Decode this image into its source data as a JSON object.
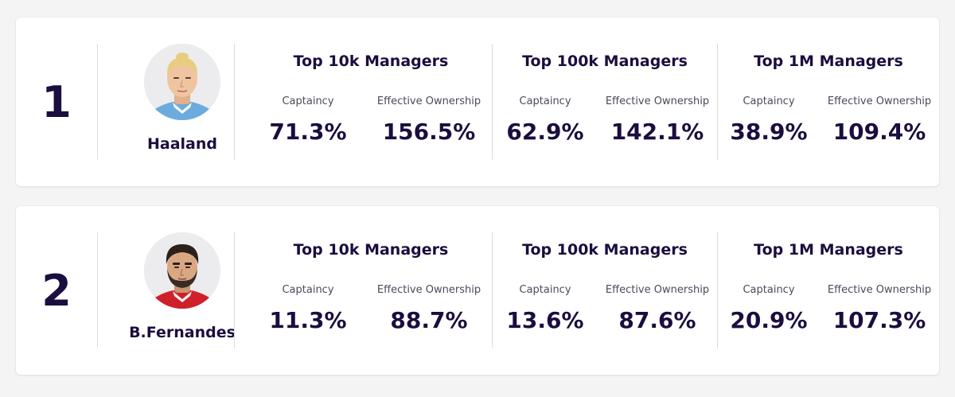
{
  "tier_labels": {
    "t10k": "Top 10k Managers",
    "t100k": "Top 100k Managers",
    "t1m": "Top 1M Managers"
  },
  "stat_labels": {
    "captaincy": "Captaincy",
    "eo": "Effective Ownership"
  },
  "players": [
    {
      "rank": "1",
      "name": "Haaland",
      "avatar": "player-avatar-blonde-light-blue-kit",
      "t10k": {
        "captaincy": "71.3%",
        "eo": "156.5%"
      },
      "t100k": {
        "captaincy": "62.9%",
        "eo": "142.1%"
      },
      "t1m": {
        "captaincy": "38.9%",
        "eo": "109.4%"
      }
    },
    {
      "rank": "2",
      "name": "B.Fernandes",
      "avatar": "player-avatar-dark-hair-beard-red-kit",
      "t10k": {
        "captaincy": "11.3%",
        "eo": "88.7%"
      },
      "t100k": {
        "captaincy": "13.6%",
        "eo": "87.6%"
      },
      "t1m": {
        "captaincy": "20.9%",
        "eo": "107.3%"
      }
    }
  ],
  "colors": {
    "background": "#f4f4f5",
    "card": "#ffffff",
    "text": "#1c0d3f",
    "divider": "#dcdce0",
    "kit_blue": "#6cabdd",
    "kit_red": "#d0202a"
  }
}
